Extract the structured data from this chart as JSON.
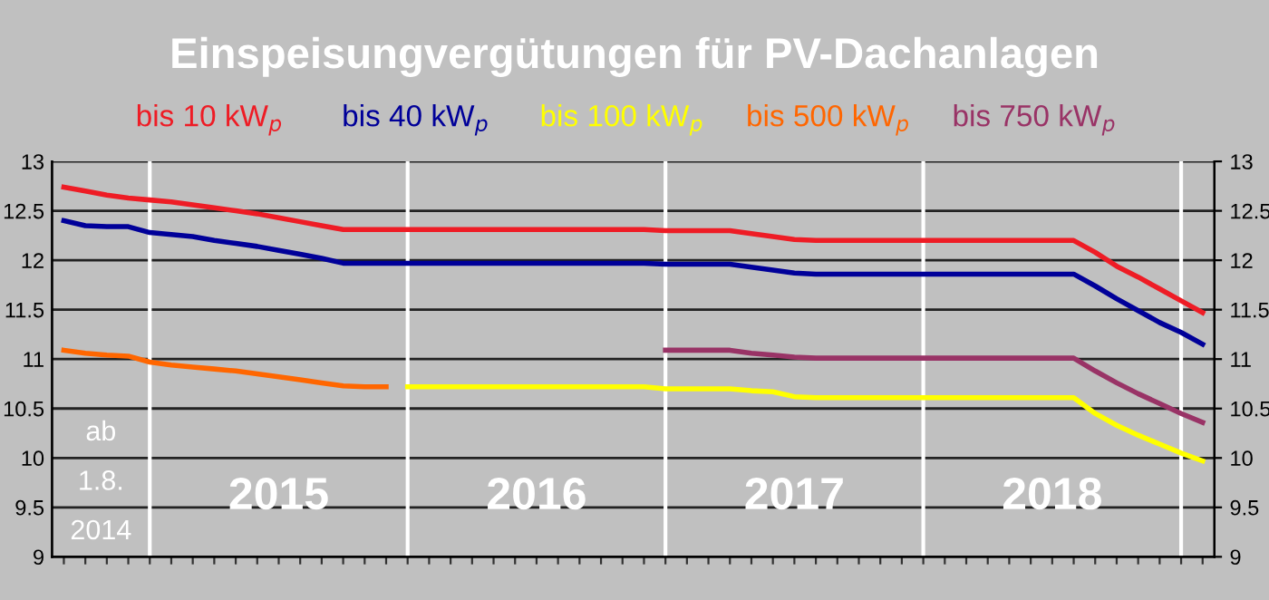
{
  "chart_data": {
    "type": "line",
    "title": "Einspeisungvergütungen für PV-Dachanlagen",
    "categories": [
      null,
      null,
      null,
      null,
      null,
      null,
      null,
      null,
      null,
      null,
      null,
      null,
      null,
      null,
      null,
      null,
      null,
      null,
      null,
      null,
      null,
      null,
      null,
      null,
      null,
      null,
      null,
      null,
      null,
      null,
      null,
      null,
      null,
      null,
      null,
      null,
      null,
      null,
      null,
      null,
      null,
      null,
      null,
      null,
      null,
      null,
      null,
      null,
      null,
      null,
      null,
      null,
      null,
      null
    ],
    "series": [
      {
        "name": "bis 10 kW$_{p}$",
        "color": "#ee1c25",
        "values": [
          12.74,
          12.7,
          12.66,
          12.63,
          12.61,
          12.59,
          12.56,
          12.53,
          12.5,
          12.47,
          12.43,
          12.39,
          12.35,
          12.31,
          12.31,
          12.31,
          12.31,
          12.31,
          12.31,
          12.31,
          12.31,
          12.31,
          12.31,
          12.31,
          12.31,
          12.31,
          12.31,
          12.31,
          12.3,
          12.3,
          12.3,
          12.3,
          12.27,
          12.24,
          12.21,
          12.2,
          12.2,
          12.2,
          12.2,
          12.2,
          12.2,
          12.2,
          12.2,
          12.2,
          12.2,
          12.2,
          12.2,
          12.2,
          12.08,
          11.94,
          11.83,
          11.71,
          11.59,
          11.47
        ]
      },
      {
        "name": "bis 40 kW$_{p}$",
        "color": "#000099",
        "values": [
          12.4,
          12.35,
          12.34,
          12.34,
          12.28,
          12.26,
          12.24,
          12.2,
          12.17,
          12.14,
          12.1,
          12.06,
          12.02,
          11.97,
          11.97,
          11.97,
          11.97,
          11.97,
          11.97,
          11.97,
          11.97,
          11.97,
          11.97,
          11.97,
          11.97,
          11.97,
          11.97,
          11.97,
          11.96,
          11.96,
          11.96,
          11.96,
          11.93,
          11.9,
          11.87,
          11.86,
          11.86,
          11.86,
          11.86,
          11.86,
          11.86,
          11.86,
          11.86,
          11.86,
          11.86,
          11.86,
          11.86,
          11.86,
          11.74,
          11.61,
          11.49,
          11.37,
          11.27,
          11.15
        ]
      },
      {
        "name": "bis 100 kW$_{p}$",
        "color": "#ffff00",
        "values": [
          null,
          null,
          null,
          null,
          null,
          null,
          null,
          null,
          null,
          null,
          null,
          null,
          null,
          null,
          null,
          null,
          10.72,
          10.72,
          10.72,
          10.72,
          10.72,
          10.72,
          10.72,
          10.72,
          10.72,
          10.72,
          10.72,
          10.72,
          10.7,
          10.7,
          10.7,
          10.7,
          10.68,
          10.67,
          10.62,
          10.61,
          10.61,
          10.61,
          10.61,
          10.61,
          10.61,
          10.61,
          10.61,
          10.61,
          10.61,
          10.61,
          10.61,
          10.61,
          10.45,
          10.33,
          10.23,
          10.14,
          10.05,
          9.97
        ]
      },
      {
        "name": "bis 500 kW$_{p}$",
        "color": "#ff6600",
        "values": [
          11.09,
          11.06,
          11.04,
          11.03,
          10.97,
          10.94,
          10.92,
          10.9,
          10.88,
          10.85,
          10.82,
          10.79,
          10.76,
          10.73,
          10.72,
          10.72,
          null,
          null,
          null,
          null,
          null,
          null,
          null,
          null,
          null,
          null,
          null,
          null,
          null,
          null,
          null,
          null,
          null,
          null,
          null,
          null,
          null,
          null,
          null,
          null,
          null,
          null,
          null,
          null,
          null,
          null,
          null,
          null,
          null,
          null,
          null,
          null,
          null,
          null
        ]
      },
      {
        "name": "bis 750 kW$_{p}$",
        "color": "#993366",
        "values": [
          null,
          null,
          null,
          null,
          null,
          null,
          null,
          null,
          null,
          null,
          null,
          null,
          null,
          null,
          null,
          null,
          null,
          null,
          null,
          null,
          null,
          null,
          null,
          null,
          null,
          null,
          null,
          null,
          11.09,
          11.09,
          11.09,
          11.09,
          11.06,
          11.04,
          11.02,
          11.01,
          11.01,
          11.01,
          11.01,
          11.01,
          11.01,
          11.01,
          11.01,
          11.01,
          11.01,
          11.01,
          11.01,
          11.01,
          10.88,
          10.76,
          10.65,
          10.55,
          10.45,
          10.36
        ]
      }
    ],
    "ylim": [
      9,
      13
    ],
    "yticks": [
      9,
      9.5,
      10,
      10.5,
      11,
      11.5,
      12,
      12.5,
      13
    ],
    "y2lim": [
      9,
      13
    ],
    "y2ticks": [
      9,
      9.5,
      10,
      10.5,
      11,
      11.5,
      12,
      12.5,
      13
    ],
    "grid": true,
    "marker": "none",
    "line_style": "solid",
    "annotations": [
      "ab\n1.8.\n2014",
      "2015",
      "2016",
      "2017",
      "2018"
    ]
  }
}
